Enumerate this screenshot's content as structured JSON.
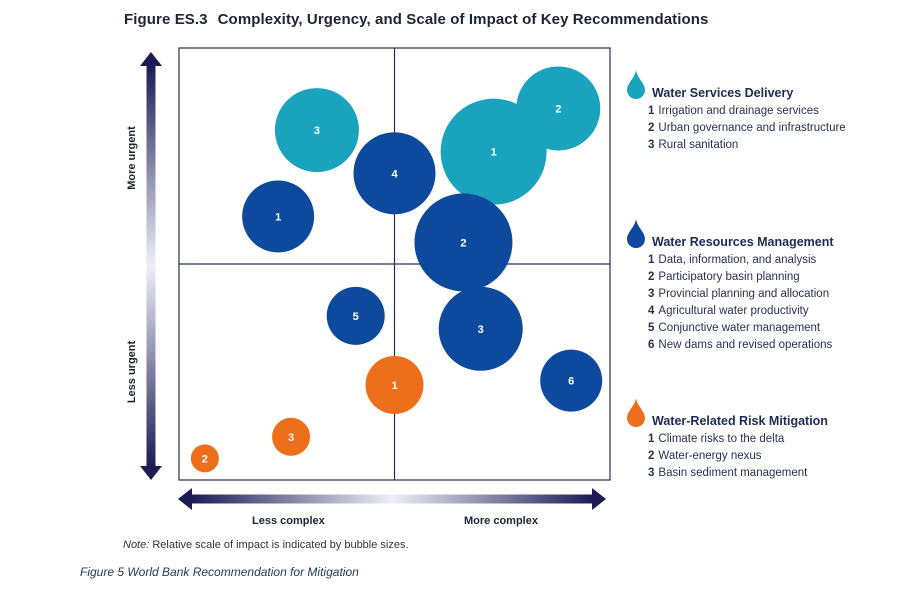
{
  "title": {
    "figure": "Figure ES.3",
    "text": "Complexity, Urgency, and Scale of Impact of Key Recommendations"
  },
  "axes": {
    "y_top": "More urgent",
    "y_bottom": "Less urgent",
    "x_left": "Less complex",
    "x_right": "More complex"
  },
  "legend": [
    {
      "name": "Water Services Delivery",
      "color": "#1aa3bd",
      "items": [
        {
          "num": "1",
          "text": "Irrigation and drainage services"
        },
        {
          "num": "2",
          "text": "Urban governance and infrastructure"
        },
        {
          "num": "3",
          "text": "Rural sanitation"
        }
      ]
    },
    {
      "name": "Water Resources Management",
      "color": "#0d4a9e",
      "items": [
        {
          "num": "1",
          "text": "Data, information, and analysis"
        },
        {
          "num": "2",
          "text": "Participatory basin planning"
        },
        {
          "num": "3",
          "text": "Provincial planning and allocation"
        },
        {
          "num": "4",
          "text": "Agricultural water productivity"
        },
        {
          "num": "5",
          "text": "Conjunctive water management"
        },
        {
          "num": "6",
          "text": "New dams and revised operations"
        }
      ]
    },
    {
      "name": "Water-Related Risk Mitigation",
      "color": "#ee6f1b",
      "items": [
        {
          "num": "1",
          "text": "Climate risks to the delta"
        },
        {
          "num": "2",
          "text": "Water-energy nexus"
        },
        {
          "num": "3",
          "text": "Basin sediment management"
        }
      ]
    }
  ],
  "note": {
    "prefix": "Note:",
    "text": " Relative scale of impact is indicated by bubble sizes."
  },
  "caption": "Figure 5 World Bank Recommendation for Mitigation",
  "chart_data": {
    "type": "scatter",
    "title": "Complexity, Urgency, and Scale of Impact of Key Recommendations",
    "xlabel": "Complexity (Less complex to More complex)",
    "ylabel": "Urgency (Less urgent to More urgent)",
    "xlim": [
      0,
      100
    ],
    "ylim": [
      0,
      100
    ],
    "series": [
      {
        "name": "Water Services Delivery",
        "color": "#1aa3bd",
        "points": [
          {
            "label": "1",
            "x": 73,
            "y": 76,
            "size": 53
          },
          {
            "label": "2",
            "x": 88,
            "y": 86,
            "size": 42
          },
          {
            "label": "3",
            "x": 32,
            "y": 81,
            "size": 42
          }
        ]
      },
      {
        "name": "Water Resources Management",
        "color": "#0d4a9e",
        "points": [
          {
            "label": "1",
            "x": 23,
            "y": 61,
            "size": 36
          },
          {
            "label": "2",
            "x": 66,
            "y": 55,
            "size": 49
          },
          {
            "label": "3",
            "x": 70,
            "y": 35,
            "size": 42
          },
          {
            "label": "4",
            "x": 50,
            "y": 71,
            "size": 41
          },
          {
            "label": "5",
            "x": 41,
            "y": 38,
            "size": 29
          },
          {
            "label": "6",
            "x": 91,
            "y": 23,
            "size": 31
          }
        ]
      },
      {
        "name": "Water-Related Risk Mitigation",
        "color": "#ee6f1b",
        "points": [
          {
            "label": "1",
            "x": 50,
            "y": 22,
            "size": 29
          },
          {
            "label": "2",
            "x": 6,
            "y": 5,
            "size": 14
          },
          {
            "label": "3",
            "x": 26,
            "y": 10,
            "size": 19
          }
        ]
      }
    ],
    "notes": "Relative scale of impact is indicated by bubble sizes."
  }
}
